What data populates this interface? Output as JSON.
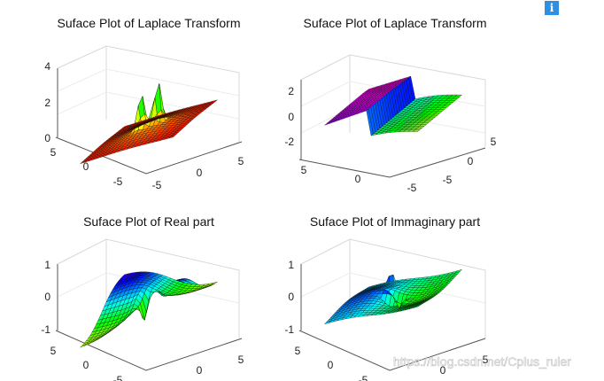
{
  "info_icon": {
    "glyph": "i",
    "name": "info-icon"
  },
  "watermark": "https://blog.csdn.net/Cplus_ruler",
  "chart_data": [
    {
      "type": "surface",
      "title": "Suface Plot of Laplace Transform",
      "xticks": [
        "-5",
        "0",
        "5"
      ],
      "yticks": [
        "-5",
        "0",
        "5"
      ],
      "zticks": [
        "0",
        "2",
        "4"
      ],
      "xlim": [
        -5,
        5
      ],
      "ylim": [
        -5,
        5
      ],
      "zlim": [
        0,
        4.5
      ],
      "grid": true,
      "colormap": "hsv",
      "peak_value": 2.4
    },
    {
      "type": "surface",
      "title": "Suface Plot of Laplace Transform",
      "xticks": [
        "-5",
        "0",
        "5"
      ],
      "yticks": [
        "-5",
        "0",
        "5"
      ],
      "zticks": [
        "-2",
        "0",
        "2"
      ],
      "xlim": [
        -5,
        5
      ],
      "ylim": [
        -5,
        5
      ],
      "zlim": [
        -3,
        3
      ],
      "grid": true,
      "colormap": "hsv",
      "step_low": -2.5,
      "step_high": 2.5
    },
    {
      "type": "surface",
      "title": "Suface Plot of Real part",
      "xticks": [
        "-5",
        "0",
        "5"
      ],
      "yticks": [
        "-5",
        "0",
        "5"
      ],
      "zticks": [
        "-1",
        "0",
        "1"
      ],
      "xlim": [
        -5,
        5
      ],
      "ylim": [
        -5,
        5
      ],
      "zlim": [
        -1.3,
        1.3
      ],
      "grid": true,
      "colormap": "hsv",
      "peak_value": 1.1
    },
    {
      "type": "surface",
      "title": "Suface Plot of Immaginary part",
      "xticks": [
        "-5",
        "0",
        "5"
      ],
      "yticks": [
        "-5",
        "0",
        "5"
      ],
      "zticks": [
        "-1",
        "0",
        "1"
      ],
      "xlim": [
        -5,
        5
      ],
      "ylim": [
        -5,
        5
      ],
      "zlim": [
        -1.3,
        1.3
      ],
      "grid": true,
      "colormap": "hsv",
      "peak_value": 1.0
    }
  ]
}
